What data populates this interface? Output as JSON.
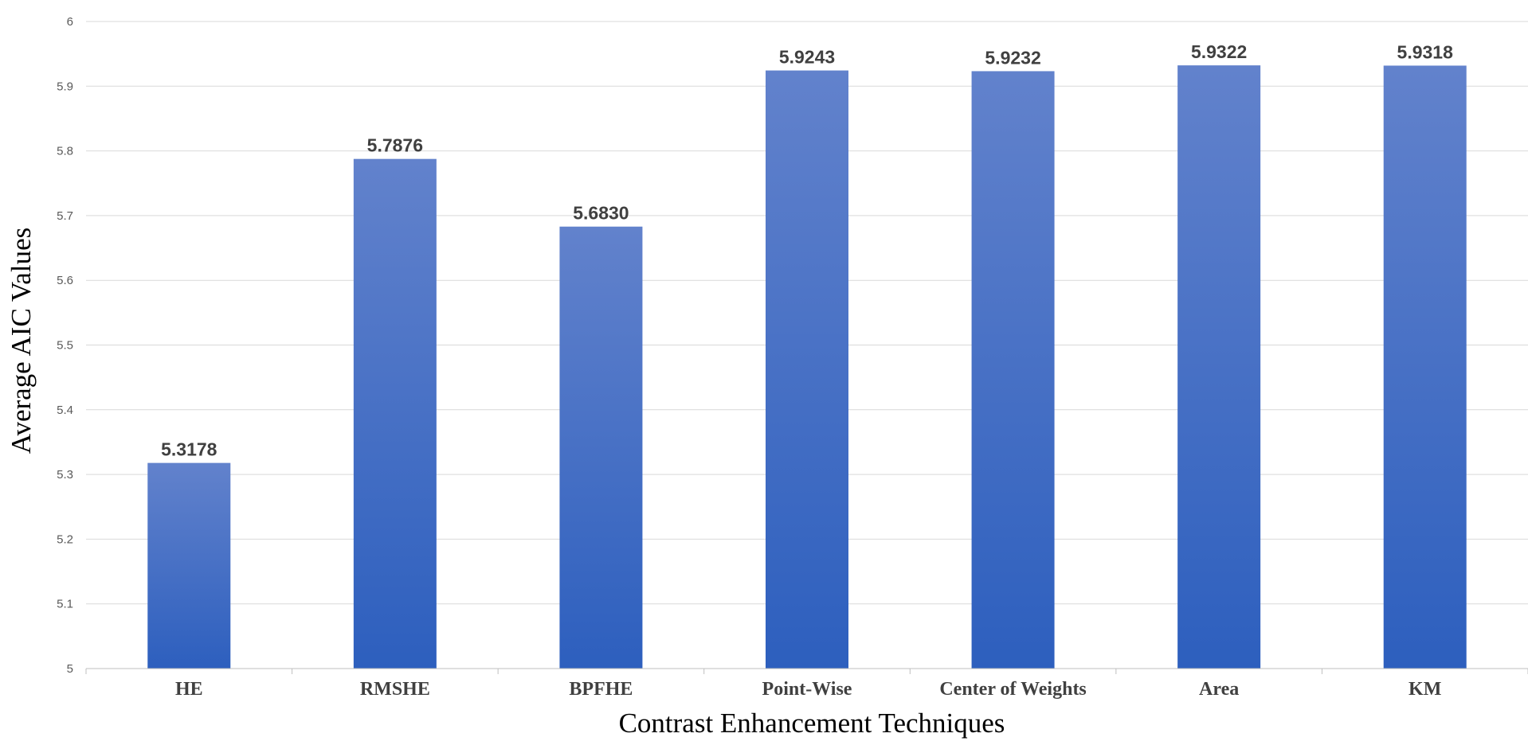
{
  "chart_data": {
    "type": "bar",
    "title": "",
    "xlabel": "Contrast Enhancement Techniques",
    "ylabel": "Average AIC Values",
    "categories": [
      "HE",
      "RMSHE",
      "BPFHE",
      "Point-Wise",
      "Center of Weights",
      "Area",
      "KM"
    ],
    "values": [
      5.3178,
      5.7876,
      5.683,
      5.9243,
      5.9232,
      5.9322,
      5.9318
    ],
    "data_labels": [
      "5.3178",
      "5.7876",
      "5.6830",
      "5.9243",
      "5.9232",
      "5.9322",
      "5.9318"
    ],
    "ylim": [
      5,
      6
    ],
    "yticks": [
      "5",
      "5.1",
      "5.2",
      "5.3",
      "5.4",
      "5.5",
      "5.6",
      "5.7",
      "5.8",
      "5.9",
      "6"
    ],
    "grid": true,
    "legend": "none",
    "colors": {
      "bar_top": "#6282CC",
      "bar_bottom": "#2D5FBE",
      "grid": "#D9D9D9",
      "axis": "#BFBFBF"
    }
  }
}
